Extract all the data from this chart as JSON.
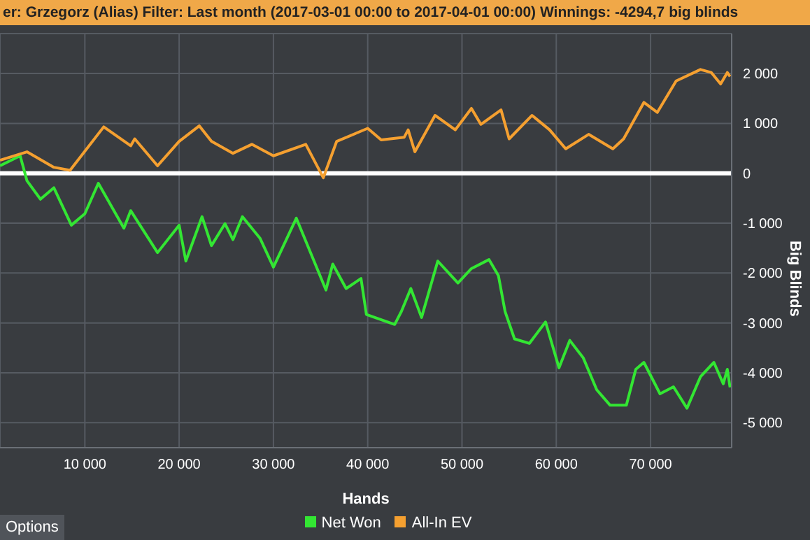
{
  "chart_data": {
    "type": "line",
    "title": "er: Grzegorz (Alias)  Filter: Last month (2017-03-01 00:00 to 2017-04-01 00:00)  Winnings: -4294,7 big blinds",
    "xlabel": "Hands",
    "ylabel": "Big Blinds",
    "annotations": [
      "Options"
    ],
    "xlim": [
      1000,
      78600
    ],
    "xticks": [
      {
        "value": 10000,
        "label": "10 000"
      },
      {
        "value": 20000,
        "label": "20 000"
      },
      {
        "value": 30000,
        "label": "30 000"
      },
      {
        "value": 40000,
        "label": "40 000"
      },
      {
        "value": 50000,
        "label": "50 000"
      },
      {
        "value": 60000,
        "label": "60 000"
      },
      {
        "value": 70000,
        "label": "70 000"
      }
    ],
    "ylim": [
      -5500,
      2800
    ],
    "yticks": [
      {
        "value": -5000,
        "label": "-5 000"
      },
      {
        "value": -4000,
        "label": "-4 000"
      },
      {
        "value": -3000,
        "label": "-3 000"
      },
      {
        "value": -2000,
        "label": "-2 000"
      },
      {
        "value": -1000,
        "label": "-1 000"
      },
      0,
      {
        "value": 1000,
        "label": "1 000"
      },
      {
        "value": 2000,
        "label": "2 000"
      }
    ],
    "grid": true,
    "legend": "bottom",
    "marker": "none",
    "line_style": "solid",
    "ref_lines": [
      {
        "axis": "y",
        "value": 0,
        "color": "#ffffff"
      }
    ],
    "series": [
      {
        "name": "Net Won",
        "color": "#33e633",
        "x": [
          1000,
          3140,
          3860,
          5290,
          6710,
          8570,
          10000,
          11430,
          14140,
          14860,
          17710,
          20000,
          20710,
          22430,
          23430,
          24860,
          25710,
          26710,
          28570,
          30000,
          32430,
          35570,
          36290,
          37710,
          39290,
          39860,
          42860,
          43570,
          44570,
          45710,
          47430,
          49570,
          51000,
          52860,
          53860,
          54570,
          55570,
          57140,
          58860,
          60290,
          61430,
          62860,
          64290,
          65710,
          67430,
          68430,
          69290,
          71000,
          72430,
          73860,
          75290,
          76710,
          77710,
          78140,
          78430
        ],
        "values": [
          150,
          350,
          -150,
          -520,
          -290,
          -1040,
          -810,
          -200,
          -1100,
          -750,
          -1590,
          -1040,
          -1760,
          -870,
          -1450,
          -1010,
          -1330,
          -870,
          -1300,
          -1880,
          -900,
          -2340,
          -1820,
          -2310,
          -2110,
          -2830,
          -3030,
          -2770,
          -2310,
          -2890,
          -1760,
          -2200,
          -1910,
          -1730,
          -2050,
          -2770,
          -3320,
          -3410,
          -2980,
          -3900,
          -3350,
          -3700,
          -4340,
          -4650,
          -4650,
          -3930,
          -3790,
          -4420,
          -4280,
          -4710,
          -4080,
          -3790,
          -4220,
          -3930,
          -4290
        ]
      },
      {
        "name": "All-In EV",
        "color": "#f5a030",
        "x": [
          1000,
          3860,
          6710,
          8430,
          12000,
          14860,
          15290,
          17710,
          20000,
          22140,
          23430,
          25710,
          27710,
          30000,
          33430,
          35290,
          36710,
          40000,
          41430,
          43860,
          44290,
          45000,
          47140,
          49290,
          51000,
          52000,
          54140,
          55000,
          57430,
          59290,
          61000,
          63430,
          66000,
          67140,
          69290,
          70710,
          72710,
          75290,
          76430,
          77430,
          78140,
          78430
        ],
        "values": [
          260,
          430,
          120,
          60,
          930,
          550,
          690,
          150,
          640,
          950,
          640,
          400,
          580,
          350,
          580,
          -90,
          640,
          900,
          670,
          720,
          870,
          430,
          1160,
          870,
          1300,
          980,
          1270,
          690,
          1160,
          870,
          490,
          780,
          490,
          690,
          1420,
          1220,
          1850,
          2080,
          2020,
          1790,
          2020,
          1940
        ]
      }
    ]
  }
}
